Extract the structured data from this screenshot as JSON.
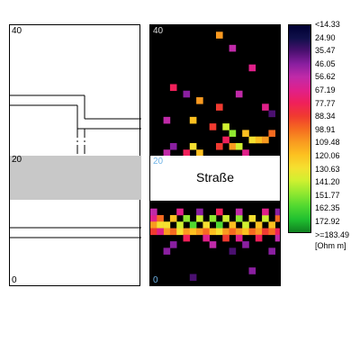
{
  "plan": {
    "y_top_label": "40",
    "y_mid_label": "20",
    "y_bottom_label": "0"
  },
  "heatmap": {
    "y_top_label": "40",
    "y_mid_label": "20",
    "y_bottom_label": "0",
    "street_label": "Straße"
  },
  "colorbar": {
    "ticks": [
      "<14.33",
      "24.90",
      "35.47",
      "46.05",
      "56.62",
      "67.19",
      "77.77",
      "88.34",
      "98.91",
      "109.48",
      "120.06",
      "130.63",
      "141.20",
      "151.77",
      "162.35",
      "172.92",
      ">=183.49"
    ],
    "unit": "[Ohm m]",
    "colors": [
      "#000033",
      "#10104a",
      "#4a1070",
      "#8a1fa0",
      "#c02aa8",
      "#e0208a",
      "#f0205a",
      "#f03a30",
      "#f56a20",
      "#f99a20",
      "#fcc020",
      "#f5e030",
      "#d0f030",
      "#90e830",
      "#50d830",
      "#20c030",
      "#108020"
    ]
  },
  "chart_data": {
    "type": "heatmap",
    "title": "",
    "xlabel": "",
    "ylabel": "",
    "ylim": [
      0,
      40
    ],
    "y_ticks": [
      0,
      20,
      40
    ],
    "color_scale_min": 14.33,
    "color_scale_max": 183.49,
    "unit": "[Ohm m]",
    "masked_region": {
      "label": "Straße",
      "y_from": 14,
      "y_to": 20
    },
    "grid": {
      "cols": 20,
      "rows": 40,
      "cells": [
        [
          10,
          38,
          110
        ],
        [
          12,
          36,
          60
        ],
        [
          15,
          33,
          70
        ],
        [
          3,
          30,
          80
        ],
        [
          5,
          29,
          50
        ],
        [
          7,
          28,
          110
        ],
        [
          10,
          27,
          90
        ],
        [
          13,
          29,
          60
        ],
        [
          17,
          27,
          70
        ],
        [
          18,
          26,
          40
        ],
        [
          2,
          25,
          60
        ],
        [
          6,
          25,
          120
        ],
        [
          9,
          24,
          90
        ],
        [
          11,
          24,
          140
        ],
        [
          12,
          23,
          150
        ],
        [
          14,
          23,
          120
        ],
        [
          15,
          22,
          130
        ],
        [
          16,
          22,
          120
        ],
        [
          17,
          22,
          110
        ],
        [
          18,
          23,
          100
        ],
        [
          11,
          22,
          80
        ],
        [
          12,
          21,
          110
        ],
        [
          13,
          21,
          140
        ],
        [
          10,
          21,
          90
        ],
        [
          6,
          21,
          130
        ],
        [
          7,
          20,
          120
        ],
        [
          5,
          20,
          80
        ],
        [
          14,
          20,
          70
        ],
        [
          2,
          20,
          60
        ],
        [
          3,
          21,
          50
        ],
        [
          0,
          10,
          70
        ],
        [
          1,
          10,
          100
        ],
        [
          2,
          9,
          130
        ],
        [
          3,
          10,
          120
        ],
        [
          4,
          9,
          140
        ],
        [
          5,
          10,
          150
        ],
        [
          6,
          9,
          160
        ],
        [
          7,
          10,
          140
        ],
        [
          8,
          9,
          130
        ],
        [
          9,
          10,
          150
        ],
        [
          10,
          9,
          160
        ],
        [
          11,
          10,
          140
        ],
        [
          12,
          9,
          120
        ],
        [
          13,
          10,
          150
        ],
        [
          14,
          9,
          140
        ],
        [
          15,
          10,
          130
        ],
        [
          16,
          9,
          120
        ],
        [
          17,
          10,
          140
        ],
        [
          18,
          9,
          120
        ],
        [
          19,
          10,
          100
        ],
        [
          0,
          9,
          110
        ],
        [
          1,
          9,
          130
        ],
        [
          2,
          8,
          110
        ],
        [
          3,
          8,
          100
        ],
        [
          4,
          8,
          130
        ],
        [
          5,
          8,
          110
        ],
        [
          6,
          8,
          120
        ],
        [
          7,
          8,
          110
        ],
        [
          8,
          8,
          100
        ],
        [
          9,
          8,
          120
        ],
        [
          10,
          8,
          130
        ],
        [
          11,
          8,
          110
        ],
        [
          12,
          8,
          100
        ],
        [
          13,
          8,
          110
        ],
        [
          14,
          8,
          120
        ],
        [
          15,
          8,
          100
        ],
        [
          16,
          8,
          110
        ],
        [
          17,
          8,
          90
        ],
        [
          18,
          8,
          100
        ],
        [
          19,
          8,
          80
        ],
        [
          0,
          8,
          90
        ],
        [
          1,
          8,
          70
        ],
        [
          5,
          7,
          80
        ],
        [
          8,
          7,
          70
        ],
        [
          11,
          7,
          90
        ],
        [
          13,
          7,
          70
        ],
        [
          16,
          7,
          80
        ],
        [
          19,
          7,
          60
        ],
        [
          3,
          6,
          50
        ],
        [
          9,
          6,
          60
        ],
        [
          14,
          6,
          50
        ],
        [
          0,
          11,
          60
        ],
        [
          4,
          11,
          70
        ],
        [
          7,
          11,
          50
        ],
        [
          10,
          11,
          80
        ],
        [
          13,
          11,
          60
        ],
        [
          17,
          11,
          70
        ],
        [
          19,
          11,
          50
        ],
        [
          2,
          5,
          50
        ],
        [
          12,
          5,
          40
        ],
        [
          18,
          5,
          50
        ],
        [
          6,
          1,
          40
        ],
        [
          15,
          2,
          50
        ]
      ]
    }
  }
}
